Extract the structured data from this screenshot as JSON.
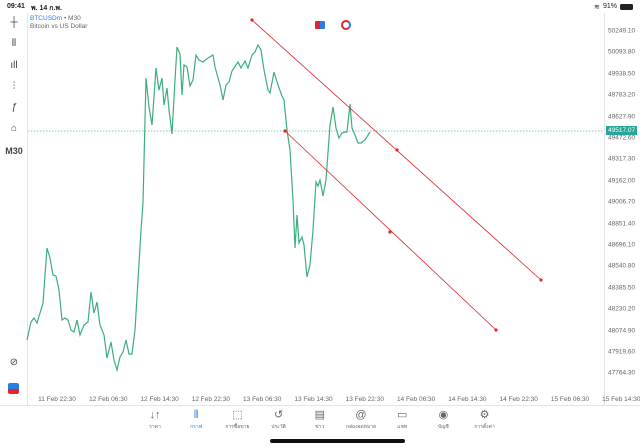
{
  "status_bar": {
    "time": "09:41",
    "date": "พ. 14 ก.พ.",
    "battery": "91%"
  },
  "chart": {
    "symbol": "BTCUSDm",
    "timeframe": "M30",
    "description": "Bitcoin vs US Dollar",
    "current_price": "49517.07",
    "line_color": "#3dae7e",
    "trendline_color": "#e0262b",
    "price_badge_color": "#26a69a"
  },
  "left_toolbar": {
    "timeframe_label": "M30"
  },
  "price_axis": [
    "50249.10",
    "50093.80",
    "49938.50",
    "49783.20",
    "49627.90",
    "49472.60",
    "49317.30",
    "49162.00",
    "49006.70",
    "48851.40",
    "48696.10",
    "48540.80",
    "48385.50",
    "48230.20",
    "48074.90",
    "47919.60",
    "47764.30"
  ],
  "time_axis": [
    "11 Feb 22:30",
    "12 Feb 06:30",
    "12 Feb 14:30",
    "12 Feb 22:30",
    "13 Feb 06:30",
    "13 Feb 14:30",
    "13 Feb 22:30",
    "14 Feb 06:30",
    "14 Feb 14:30",
    "14 Feb 22:30",
    "15 Feb 06:30",
    "15 Feb 14:30"
  ],
  "tabs": [
    {
      "label": "ราคา",
      "icon": "arrows-up-down-icon",
      "glyph": "↓↑"
    },
    {
      "label": "กราฟ",
      "icon": "candlestick-icon",
      "glyph": "⫴"
    },
    {
      "label": "การซื้อขาย",
      "icon": "trade-chart-icon",
      "glyph": "⬚"
    },
    {
      "label": "ประวัติ",
      "icon": "history-icon",
      "glyph": "↺"
    },
    {
      "label": "ข่าว",
      "icon": "news-icon",
      "glyph": "▤"
    },
    {
      "label": "กล่องจดหมาย",
      "icon": "at-icon",
      "glyph": "@"
    },
    {
      "label": "แชท",
      "icon": "chat-icon",
      "glyph": "▭"
    },
    {
      "label": "บัญชี",
      "icon": "account-icon",
      "glyph": "◉"
    },
    {
      "label": "การตั้งค่า",
      "icon": "gear-icon",
      "glyph": "⚙"
    }
  ],
  "active_tab": 1
}
